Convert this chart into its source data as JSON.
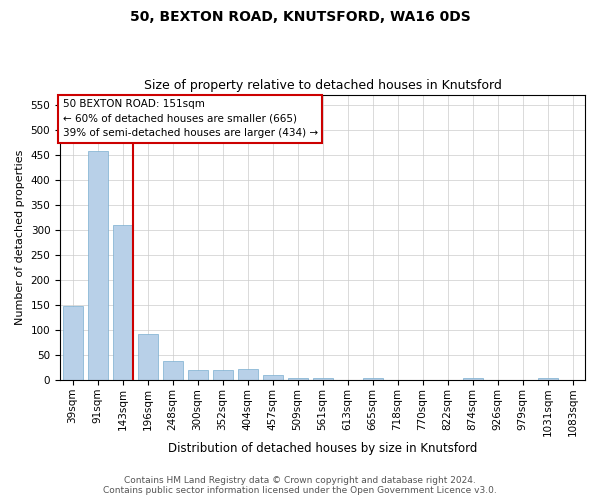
{
  "title1": "50, BEXTON ROAD, KNUTSFORD, WA16 0DS",
  "title2": "Size of property relative to detached houses in Knutsford",
  "xlabel": "Distribution of detached houses by size in Knutsford",
  "ylabel": "Number of detached properties",
  "bar_color": "#b8d0e8",
  "bar_edge_color": "#7aaed0",
  "categories": [
    "39sqm",
    "91sqm",
    "143sqm",
    "196sqm",
    "248sqm",
    "300sqm",
    "352sqm",
    "404sqm",
    "457sqm",
    "509sqm",
    "561sqm",
    "613sqm",
    "665sqm",
    "718sqm",
    "770sqm",
    "822sqm",
    "874sqm",
    "926sqm",
    "979sqm",
    "1031sqm",
    "1083sqm"
  ],
  "values": [
    148,
    457,
    310,
    92,
    38,
    20,
    20,
    22,
    10,
    5,
    5,
    0,
    5,
    0,
    0,
    0,
    5,
    0,
    0,
    5,
    0
  ],
  "vline_x_pos": 2.4,
  "vline_color": "#cc0000",
  "annotation_line1": "50 BEXTON ROAD: 151sqm",
  "annotation_line2": "← 60% of detached houses are smaller (665)",
  "annotation_line3": "39% of semi-detached houses are larger (434) →",
  "annotation_box_edgecolor": "#cc0000",
  "ylim": [
    0,
    570
  ],
  "yticks": [
    0,
    50,
    100,
    150,
    200,
    250,
    300,
    350,
    400,
    450,
    500,
    550
  ],
  "grid_color": "#cccccc",
  "bg_color": "#ffffff",
  "footer1": "Contains HM Land Registry data © Crown copyright and database right 2024.",
  "footer2": "Contains public sector information licensed under the Open Government Licence v3.0.",
  "title1_fontsize": 10,
  "title2_fontsize": 9,
  "xlabel_fontsize": 8.5,
  "ylabel_fontsize": 8,
  "tick_fontsize": 7.5,
  "annotation_fontsize": 7.5,
  "footer_fontsize": 6.5
}
